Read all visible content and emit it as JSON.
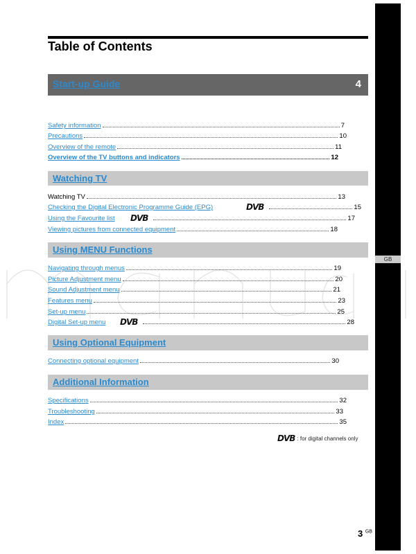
{
  "title": "Table of Contents",
  "side_tab": "GB",
  "watermark": "manuali",
  "sections": [
    {
      "label": "Start-up Guide",
      "num": "4",
      "entries": [
        {
          "text": "Safety information",
          "page": "7"
        },
        {
          "text": "Precautions",
          "page": "10"
        },
        {
          "text": "Overview of the remote",
          "page": "11"
        },
        {
          "text": "Overview of the TV buttons and indicators",
          "page": "12",
          "bold": true
        }
      ]
    },
    {
      "label": "Watching TV",
      "entries": [
        {
          "text": "Watching TV",
          "page": "13",
          "plain": true
        },
        {
          "text": "Checking the Digital Electronic Programme Guide (EPG)",
          "page": "15",
          "dvb": true
        },
        {
          "text": "Using the Favourite list",
          "page": "17",
          "dvb": true
        },
        {
          "text": "Viewing pictures from connected equipment",
          "page": "18"
        }
      ]
    },
    {
      "label": "Using MENU Functions",
      "entries": [
        {
          "text": "Navigating through menus",
          "page": "19"
        },
        {
          "text": "Picture Adjustment menu",
          "page": "20"
        },
        {
          "text": "Sound Adjustment menu",
          "page": "21"
        },
        {
          "text": "Features menu",
          "page": "23"
        },
        {
          "text": "Set-up menu",
          "page": "25"
        },
        {
          "text": "Digital Set-up menu",
          "page": "28",
          "dvb": true
        }
      ]
    },
    {
      "label": "Using Optional Equipment",
      "entries": [
        {
          "text": "Connecting optional equipment",
          "page": "30"
        }
      ]
    },
    {
      "label": "Additional Information",
      "entries": [
        {
          "text": "Specifications",
          "page": "32"
        },
        {
          "text": "Troubleshooting",
          "page": "33"
        },
        {
          "text": "Index",
          "page": "35"
        }
      ]
    }
  ],
  "dvb_logo": "DVB",
  "footnote": ": for digital channels only",
  "page_number": "3",
  "page_suffix": "GB",
  "colors": {
    "link": "#2a8ad0",
    "bar": "#c8c8c8",
    "bar_dark": "#666666"
  }
}
